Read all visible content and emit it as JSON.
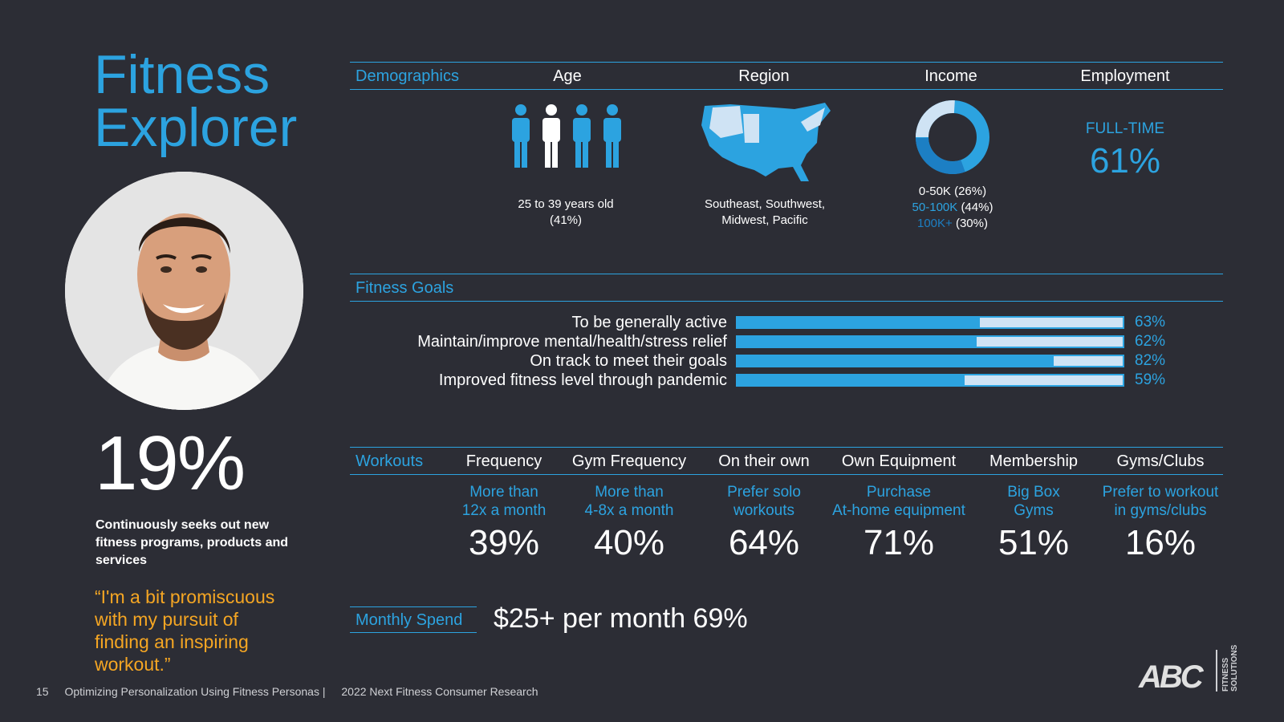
{
  "persona": {
    "title_line1": "Fitness",
    "title_line2": "Explorer",
    "percent": "19%",
    "description": "Continuously seeks out new fitness programs, products and services",
    "quote": "“I'm a bit promiscuous with my pursuit of finding an inspiring workout.”"
  },
  "demographics": {
    "label": "Demographics",
    "age": {
      "header": "Age",
      "text": "25 to 39 years old (41%)"
    },
    "region": {
      "header": "Region",
      "text": "Southeast, Southwest, Midwest, Pacific"
    },
    "income": {
      "header": "Income",
      "line1_label": "0-50K",
      "line1_value": "(26%)",
      "line2_label": "50-100K",
      "line2_value": "(44%)",
      "line3_label": "100K+",
      "line3_value": "(30%)"
    },
    "employment": {
      "header": "Employment",
      "label": "FULL-TIME",
      "value": "61%"
    }
  },
  "goals": {
    "label": "Fitness Goals",
    "items": [
      {
        "label": "To be generally active",
        "pct": "63%",
        "value": 0.63
      },
      {
        "label": "Maintain/improve mental/health/stress relief",
        "pct": "62%",
        "value": 0.62
      },
      {
        "label": "On track to meet their goals",
        "pct": "82%",
        "value": 0.82
      },
      {
        "label": "Improved fitness level through pandemic",
        "pct": "59%",
        "value": 0.59
      }
    ]
  },
  "workouts": {
    "label": "Workouts",
    "columns": [
      {
        "header": "Frequency",
        "line1": "More than",
        "line2": "12x a month",
        "pct": "39%"
      },
      {
        "header": "Gym Frequency",
        "line1": "More than",
        "line2": "4-8x a month",
        "pct": "40%"
      },
      {
        "header": "On their own",
        "line1": "Prefer solo",
        "line2": "workouts",
        "pct": "64%"
      },
      {
        "header": "Own Equipment",
        "line1": "Purchase",
        "line2": "At-home equipment",
        "pct": "71%"
      },
      {
        "header": "Membership",
        "line1": "Big Box",
        "line2": "Gyms",
        "pct": "51%"
      },
      {
        "header": "Gyms/Clubs",
        "line1": "Prefer to workout",
        "line2": "in gyms/clubs",
        "pct": "16%"
      }
    ]
  },
  "spend": {
    "label": "Monthly Spend",
    "value": "$25+ per month 69%"
  },
  "footer": {
    "page": "15",
    "left": "Optimizing Personalization Using Fitness Personas |",
    "right": "2022 Next Fitness Consumer Research"
  },
  "logo": {
    "text": "ABC",
    "side_line1": "FITNESS",
    "side_line2": "SOLUTIONS"
  },
  "colors": {
    "background": "#2c2d35",
    "accent": "#2ca3e0",
    "quote": "#f5a623",
    "light_bar": "#cfe3f4"
  }
}
